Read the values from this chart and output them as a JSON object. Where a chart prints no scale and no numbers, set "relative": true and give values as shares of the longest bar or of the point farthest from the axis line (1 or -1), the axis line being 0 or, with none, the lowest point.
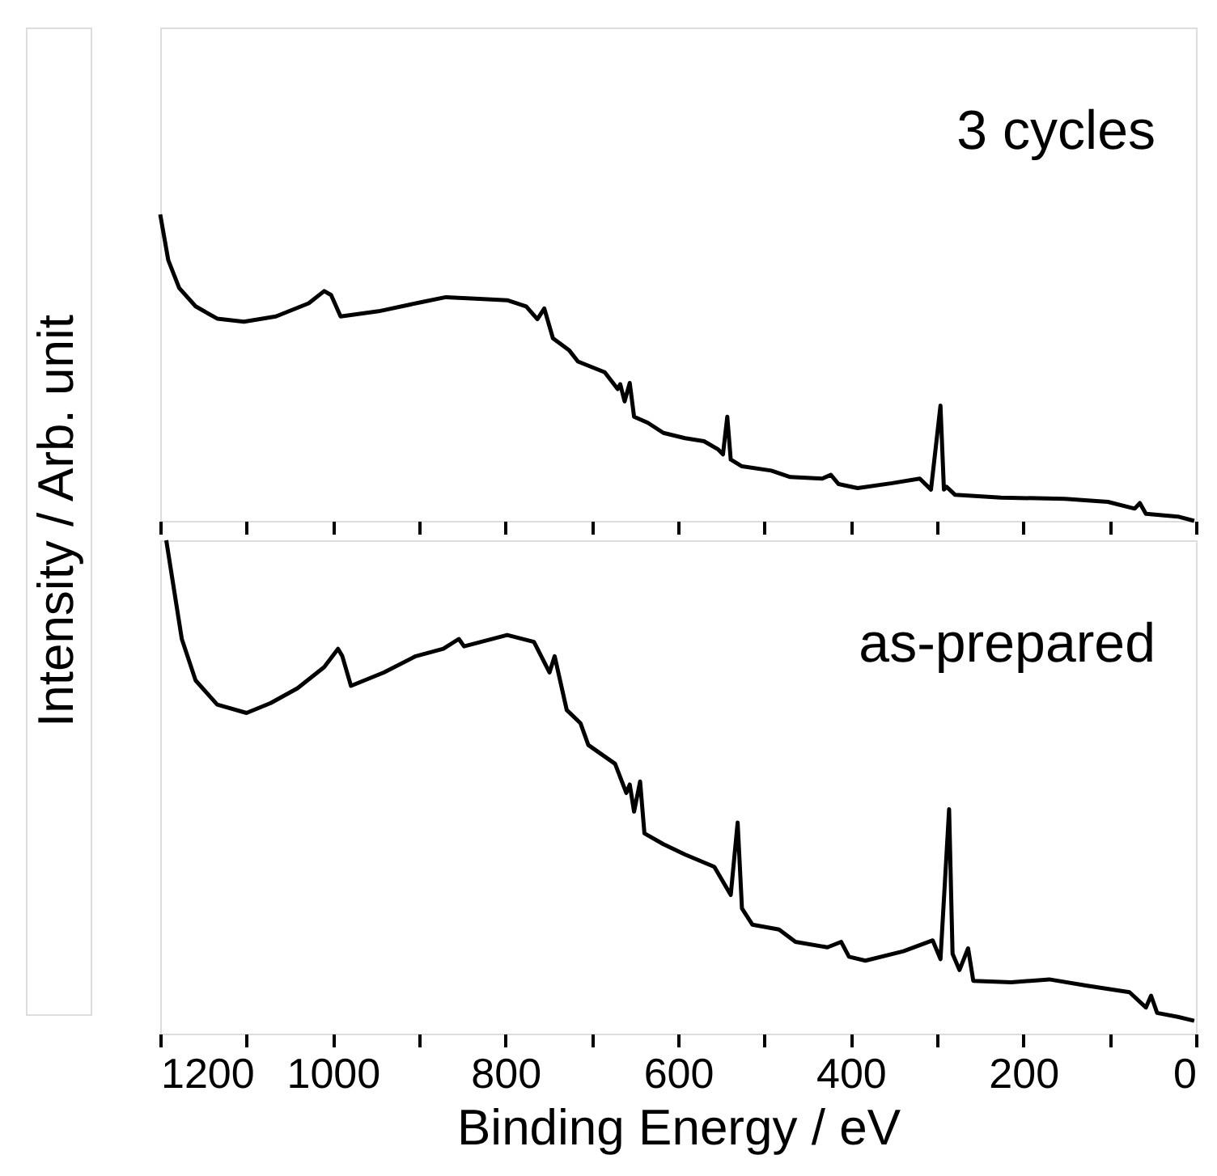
{
  "chart_data": [
    {
      "type": "line",
      "relative": true,
      "ylabel": "Intensity / Arb. unit",
      "annotations": [
        "3 cycles"
      ],
      "legend": false,
      "grid": false,
      "tick_labels": false,
      "xlim": [
        1200,
        0
      ],
      "xticks": [
        1200,
        {
          "value": 1100,
          "label": null
        },
        1000,
        {
          "value": 900,
          "label": null
        },
        800,
        {
          "value": 700,
          "label": null
        },
        600,
        {
          "value": 500,
          "label": null
        },
        400,
        {
          "value": 300,
          "label": null
        },
        200,
        {
          "value": 100,
          "label": null
        },
        0
      ],
      "series": [
        {
          "color": "#000000",
          "x": [
            1200,
            1190.6,
            1178,
            1159,
            1134,
            1103,
            1066,
            1028,
            1010,
            1002,
            991,
            947,
            897,
            869,
            835,
            798,
            776,
            763,
            755,
            745,
            726,
            716,
            685,
            670,
            667,
            662,
            656,
            651,
            635,
            617,
            592,
            570,
            554,
            548,
            543,
            539,
            526,
            492,
            470,
            433,
            423,
            414,
            392,
            352,
            320,
            307,
            296,
            292,
            289,
            279,
            226,
            152,
            102,
            71,
            65,
            58,
            21,
            2
          ],
          "values": [
            1.0,
            0.85,
            0.76,
            0.7,
            0.66,
            0.65,
            0.667,
            0.71,
            0.75,
            0.737,
            0.667,
            0.684,
            0.714,
            0.73,
            0.725,
            0.72,
            0.7,
            0.658,
            0.693,
            0.596,
            0.556,
            0.52,
            0.485,
            0.43,
            0.446,
            0.39,
            0.45,
            0.34,
            0.32,
            0.287,
            0.27,
            0.26,
            0.234,
            0.217,
            0.34,
            0.2,
            0.178,
            0.164,
            0.143,
            0.138,
            0.15,
            0.12,
            0.107,
            0.123,
            0.138,
            0.102,
            0.376,
            0.102,
            0.111,
            0.085,
            0.076,
            0.072,
            0.062,
            0.04,
            0.058,
            0.023,
            0.014,
            0.0
          ]
        }
      ]
    },
    {
      "type": "line",
      "relative": true,
      "xlabel": "Binding Energy / eV",
      "annotations": [
        "as-prepared"
      ],
      "legend": false,
      "grid": false,
      "tick_labels": "x",
      "xlim": [
        1200,
        0
      ],
      "xticks": [
        1200,
        {
          "value": 1100,
          "label": null
        },
        1000,
        {
          "value": 900,
          "label": null
        },
        800,
        {
          "value": 700,
          "label": null
        },
        600,
        {
          "value": 500,
          "label": null
        },
        400,
        {
          "value": 300,
          "label": null
        },
        200,
        {
          "value": 100,
          "label": null
        },
        0
      ],
      "series": [
        {
          "color": "#000000",
          "x": [
            1193,
            1184,
            1175,
            1159,
            1134,
            1100,
            1072,
            1041,
            1010,
            994,
            989,
            979,
            941,
            904,
            872,
            854,
            848,
            798,
            767,
            749,
            743,
            729,
            713,
            704,
            673,
            660,
            656,
            651,
            644,
            639,
            617,
            592,
            558,
            539,
            531,
            526,
            514,
            483,
            464,
            427,
            411,
            402,
            383,
            339,
            305,
            296,
            286,
            282,
            274,
            264,
            258,
            214,
            170,
            126,
            77,
            58,
            52,
            45,
            21,
            2
          ],
          "values": [
            1.0,
            0.9,
            0.8,
            0.716,
            0.667,
            0.65,
            0.67,
            0.7,
            0.743,
            0.78,
            0.765,
            0.705,
            0.732,
            0.765,
            0.78,
            0.8,
            0.785,
            0.808,
            0.794,
            0.732,
            0.765,
            0.656,
            0.629,
            0.585,
            0.547,
            0.488,
            0.505,
            0.45,
            0.511,
            0.406,
            0.384,
            0.363,
            0.338,
            0.281,
            0.428,
            0.254,
            0.221,
            0.211,
            0.186,
            0.175,
            0.186,
            0.156,
            0.148,
            0.167,
            0.189,
            0.151,
            0.455,
            0.162,
            0.129,
            0.173,
            0.107,
            0.104,
            0.11,
            0.097,
            0.084,
            0.053,
            0.077,
            0.042,
            0.034,
            0.026
          ]
        }
      ]
    }
  ]
}
